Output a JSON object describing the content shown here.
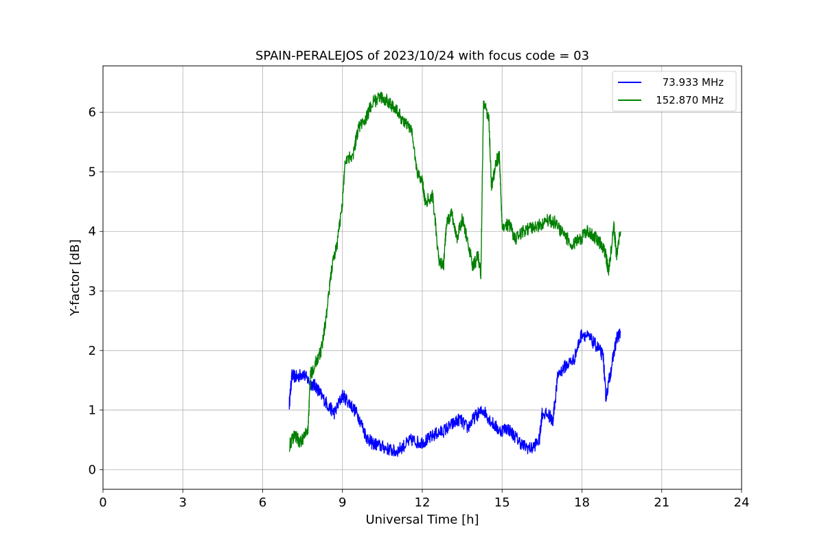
{
  "chart_data": {
    "type": "line",
    "title": "SPAIN-PERALEJOS of 2023/10/24 with focus code = 03",
    "xlabel": "Universal Time [h]",
    "ylabel": "Y-factor [dB]",
    "xlim": [
      0,
      24
    ],
    "ylim": [
      -0.33,
      6.78
    ],
    "xticks": [
      0,
      3,
      6,
      9,
      12,
      15,
      18,
      21,
      24
    ],
    "yticks": [
      0,
      1,
      2,
      3,
      4,
      5,
      6
    ],
    "grid": true,
    "legend_position": "top-right",
    "series": [
      {
        "name": "73.933 MHz",
        "color": "#0000ff",
        "points": [
          [
            7.0,
            1.1
          ],
          [
            7.1,
            1.58
          ],
          [
            7.3,
            1.55
          ],
          [
            7.5,
            1.62
          ],
          [
            7.8,
            1.45
          ],
          [
            8.0,
            1.4
          ],
          [
            8.2,
            1.25
          ],
          [
            8.5,
            1.05
          ],
          [
            8.7,
            0.95
          ],
          [
            9.0,
            1.25
          ],
          [
            9.3,
            1.1
          ],
          [
            9.6,
            0.9
          ],
          [
            9.9,
            0.55
          ],
          [
            10.1,
            0.45
          ],
          [
            10.4,
            0.4
          ],
          [
            10.7,
            0.35
          ],
          [
            11.0,
            0.3
          ],
          [
            11.3,
            0.4
          ],
          [
            11.6,
            0.5
          ],
          [
            11.9,
            0.45
          ],
          [
            12.2,
            0.5
          ],
          [
            12.5,
            0.6
          ],
          [
            12.8,
            0.65
          ],
          [
            13.1,
            0.75
          ],
          [
            13.4,
            0.85
          ],
          [
            13.7,
            0.7
          ],
          [
            14.0,
            0.9
          ],
          [
            14.3,
            1.0
          ],
          [
            14.6,
            0.8
          ],
          [
            14.9,
            0.65
          ],
          [
            15.2,
            0.7
          ],
          [
            15.5,
            0.55
          ],
          [
            15.8,
            0.4
          ],
          [
            16.1,
            0.35
          ],
          [
            16.4,
            0.5
          ],
          [
            16.5,
            0.95
          ],
          [
            16.8,
            0.9
          ],
          [
            16.9,
            0.8
          ],
          [
            17.1,
            1.6
          ],
          [
            17.4,
            1.75
          ],
          [
            17.7,
            1.85
          ],
          [
            18.0,
            2.3
          ],
          [
            18.3,
            2.2
          ],
          [
            18.6,
            2.05
          ],
          [
            18.8,
            1.9
          ],
          [
            18.9,
            1.2
          ],
          [
            19.1,
            1.7
          ],
          [
            19.3,
            2.2
          ],
          [
            19.45,
            2.3
          ]
        ]
      },
      {
        "name": "152.870 MHz",
        "color": "#008000",
        "points": [
          [
            7.0,
            0.4
          ],
          [
            7.2,
            0.6
          ],
          [
            7.4,
            0.45
          ],
          [
            7.7,
            0.65
          ],
          [
            7.8,
            1.6
          ],
          [
            8.0,
            1.8
          ],
          [
            8.2,
            2.0
          ],
          [
            8.4,
            2.6
          ],
          [
            8.6,
            3.4
          ],
          [
            8.8,
            3.8
          ],
          [
            9.0,
            4.5
          ],
          [
            9.1,
            5.2
          ],
          [
            9.4,
            5.3
          ],
          [
            9.6,
            5.75
          ],
          [
            9.9,
            5.9
          ],
          [
            10.1,
            6.15
          ],
          [
            10.4,
            6.25
          ],
          [
            10.7,
            6.2
          ],
          [
            11.0,
            6.05
          ],
          [
            11.3,
            5.85
          ],
          [
            11.6,
            5.7
          ],
          [
            11.8,
            5.0
          ],
          [
            12.0,
            4.85
          ],
          [
            12.1,
            4.5
          ],
          [
            12.4,
            4.6
          ],
          [
            12.6,
            3.55
          ],
          [
            12.8,
            3.4
          ],
          [
            12.9,
            4.1
          ],
          [
            13.1,
            4.3
          ],
          [
            13.3,
            3.9
          ],
          [
            13.5,
            4.2
          ],
          [
            13.7,
            3.85
          ],
          [
            13.9,
            3.4
          ],
          [
            14.1,
            3.6
          ],
          [
            14.2,
            3.25
          ],
          [
            14.3,
            6.2
          ],
          [
            14.5,
            5.9
          ],
          [
            14.6,
            4.75
          ],
          [
            14.8,
            5.2
          ],
          [
            14.9,
            5.25
          ],
          [
            15.0,
            4.1
          ],
          [
            15.3,
            4.1
          ],
          [
            15.5,
            3.85
          ],
          [
            15.8,
            4.0
          ],
          [
            16.1,
            4.05
          ],
          [
            16.4,
            4.1
          ],
          [
            16.7,
            4.2
          ],
          [
            17.0,
            4.15
          ],
          [
            17.3,
            3.95
          ],
          [
            17.6,
            3.8
          ],
          [
            17.9,
            3.85
          ],
          [
            18.2,
            4.0
          ],
          [
            18.5,
            3.9
          ],
          [
            18.7,
            3.8
          ],
          [
            18.9,
            3.6
          ],
          [
            19.0,
            3.3
          ],
          [
            19.2,
            4.1
          ],
          [
            19.3,
            3.6
          ],
          [
            19.45,
            4.0
          ]
        ]
      }
    ]
  }
}
